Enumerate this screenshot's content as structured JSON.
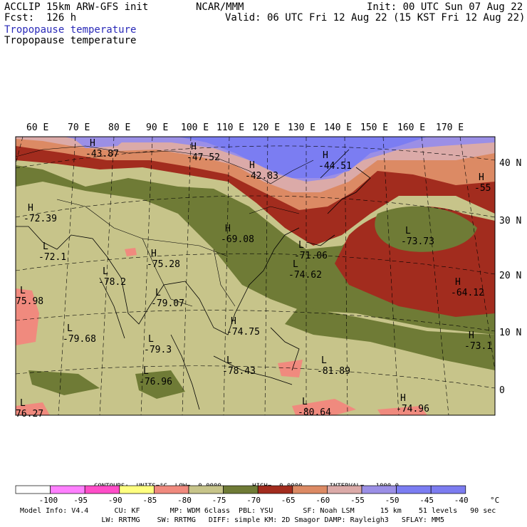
{
  "header": {
    "model": "ACCLIP 15km ARW-GFS init",
    "forecast": "Fcst:  126 h",
    "center": "NCAR/MMM",
    "init": "Init: 00 UTC Sun 07 Aug 22",
    "valid": "Valid: 06 UTC Fri 12 Aug 22 (15 KST Fri 12 Aug 22)",
    "field_title_blue": "Tropopause temperature",
    "field_title_black": "Tropopause temperature"
  },
  "map": {
    "longitude_labels": [
      "60 E",
      "70 E",
      "80 E",
      "90 E",
      "100 E",
      "110 E",
      "120 E",
      "130 E",
      "140 E",
      "150 E",
      "160 E",
      "170 E"
    ],
    "latitude_labels": [
      "40 N",
      "30 N",
      "20 N",
      "10 N",
      "0"
    ],
    "extrema": [
      {
        "type": "H",
        "value": "-43.87"
      },
      {
        "type": "H",
        "value": "-47.52"
      },
      {
        "type": "H",
        "value": "-42.83"
      },
      {
        "type": "H",
        "value": "-44.51"
      },
      {
        "type": "H",
        "value": "-55"
      },
      {
        "type": "H",
        "value": "-72.39"
      },
      {
        "type": "H",
        "value": "-69.08"
      },
      {
        "type": "L",
        "value": "-71.06"
      },
      {
        "type": "L",
        "value": "-73.73"
      },
      {
        "type": "L",
        "value": "-72.1"
      },
      {
        "type": "H",
        "value": "-75.28"
      },
      {
        "type": "L",
        "value": "-74.62"
      },
      {
        "type": "L",
        "value": "-78.2"
      },
      {
        "type": "H",
        "value": "-64.12"
      },
      {
        "type": "L",
        "value": "75.98"
      },
      {
        "type": "L",
        "value": "-79.07"
      },
      {
        "type": "H",
        "value": "-74.75"
      },
      {
        "type": "H",
        "value": "-73.1"
      },
      {
        "type": "L",
        "value": "-79.68"
      },
      {
        "type": "L",
        "value": "-79.3"
      },
      {
        "type": "L",
        "value": "-78.43"
      },
      {
        "type": "L",
        "value": "-81.89"
      },
      {
        "type": "L",
        "value": "-76.96"
      },
      {
        "type": "L",
        "value": "76.27"
      },
      {
        "type": "L",
        "value": "-80.64"
      },
      {
        "type": "H",
        "value": "-74.96"
      }
    ]
  },
  "legend": {
    "contour_info": "CONTOURS:  UNITS=°C  LOW=  0.0000        HIGH=  0.0000       INTERVAL=   1000.0",
    "bins": [
      {
        "color": "#ffffff"
      },
      {
        "color": "#ff80ff"
      },
      {
        "color": "#ff4dc8"
      },
      {
        "color": "#ffff80"
      },
      {
        "color": "#f08a7e"
      },
      {
        "color": "#c7c48a"
      },
      {
        "color": "#6f7b36"
      },
      {
        "color": "#a22c1e"
      },
      {
        "color": "#dc8a64"
      },
      {
        "color": "#dbaaa8"
      },
      {
        "color": "#9b8fe6"
      },
      {
        "color": "#7b7df2"
      },
      {
        "color": "#7c7cf0"
      }
    ],
    "tick_labels": [
      "-100",
      "-95",
      "-90",
      "-85",
      "-80",
      "-75",
      "-70",
      "-65",
      "-60",
      "-55",
      "-50",
      "-45",
      "-40"
    ],
    "unit": "°C"
  },
  "footer": {
    "line1": "Model Info: V4.4      CU: KF       MP: WDM 6class  PBL: YSU       SF: Noah LSM      15 km    51 levels   90 sec",
    "line2": "                   LW: RRTMG    SW: RRTMG   DIFF: simple KM: 2D Smagor DAMP: Rayleigh3   SFLAY: MM5"
  },
  "colors": {
    "sea_olive": "#c7c48a",
    "dark_olive": "#6f7b36",
    "dark_red": "#a22c1e",
    "orange": "#dc8a64",
    "pink_tan": "#dbaaa8",
    "lavender": "#9b8fe6",
    "blue": "#7b7df2",
    "salmon": "#f08a7e"
  }
}
